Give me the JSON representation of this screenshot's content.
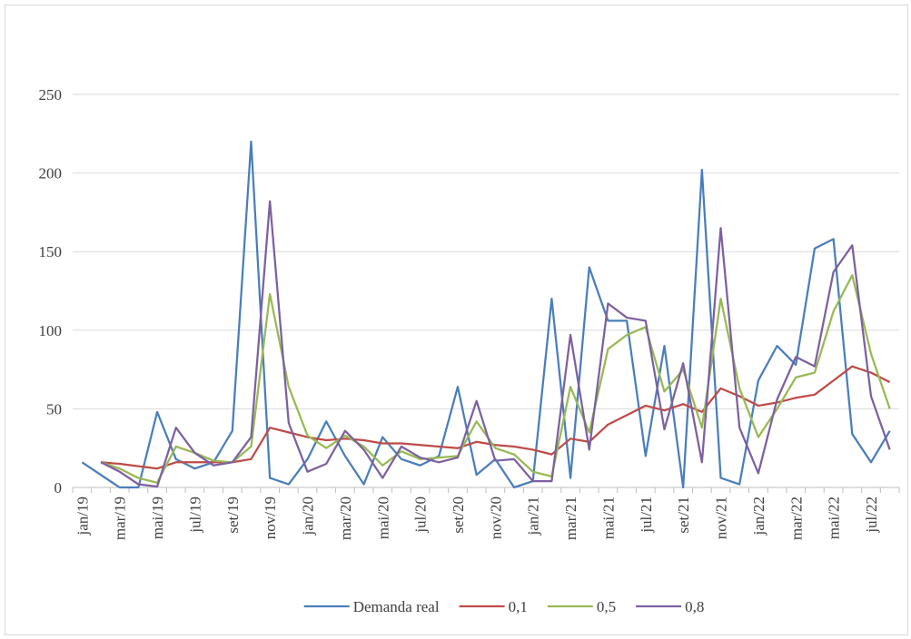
{
  "chart_data": {
    "type": "line",
    "categories": [
      "jan/19",
      null,
      "mar/19",
      null,
      "mai/19",
      null,
      "jul/19",
      null,
      "set/19",
      null,
      "nov/19",
      null,
      "jan/20",
      null,
      "mar/20",
      null,
      "mai/20",
      null,
      "jul/20",
      null,
      "set/20",
      null,
      "nov/20",
      null,
      "jan/21",
      null,
      "mar/21",
      null,
      "mai/21",
      null,
      "jul/21",
      null,
      "set/21",
      null,
      "nov/21",
      null,
      "jan/22",
      null,
      "mar/22",
      null,
      "mai/22",
      null,
      "jul/22",
      null
    ],
    "series": [
      {
        "name": "Demanda real",
        "color": "#4a7ebb",
        "values": [
          16,
          8,
          0,
          0,
          48,
          18,
          12,
          16,
          36,
          220,
          6,
          2,
          18,
          42,
          20,
          2,
          32,
          18,
          14,
          20,
          64,
          8,
          18,
          0,
          4,
          120,
          6,
          140,
          106,
          106,
          20,
          90,
          0,
          202,
          6,
          2,
          68,
          90,
          78,
          152,
          158,
          34,
          16,
          36
        ]
      },
      {
        "name": "0,1",
        "color": "#be4b48",
        "values": [
          null,
          16,
          15,
          13.5,
          12,
          16,
          16,
          16,
          16,
          18,
          38,
          35,
          32,
          30,
          31,
          30,
          28,
          28,
          27,
          26,
          25,
          29,
          27,
          26,
          24,
          21,
          31,
          29,
          40,
          46,
          52,
          49,
          53,
          48,
          63,
          58,
          52,
          54,
          57,
          59,
          68,
          77,
          73,
          67
        ]
      },
      {
        "name": "0,5",
        "color": "#98b954",
        "values": [
          null,
          16,
          12,
          6,
          3,
          26,
          22,
          17,
          16,
          26,
          123,
          64,
          33,
          25,
          33,
          26,
          14,
          23,
          18,
          19,
          20,
          42,
          25,
          21,
          10,
          7,
          64,
          35,
          88,
          97,
          102,
          61,
          75,
          38,
          120,
          63,
          32,
          50,
          70,
          73,
          112,
          135,
          85,
          50
        ]
      },
      {
        "name": "0,8",
        "color": "#7d60a0",
        "values": [
          null,
          16,
          10,
          2,
          0.5,
          38,
          22,
          14,
          16,
          32,
          182,
          41,
          10,
          15,
          36,
          24,
          6,
          26,
          19,
          16,
          19,
          55,
          17,
          18,
          4,
          4,
          97,
          24,
          117,
          108,
          106,
          37,
          79,
          16,
          165,
          38,
          9,
          56,
          83,
          77,
          137,
          154,
          58,
          24
        ]
      }
    ],
    "ylim": [
      0,
      250
    ],
    "yticks": [
      0,
      50,
      100,
      150,
      200,
      250
    ],
    "grid": true,
    "legend": "bottom"
  }
}
